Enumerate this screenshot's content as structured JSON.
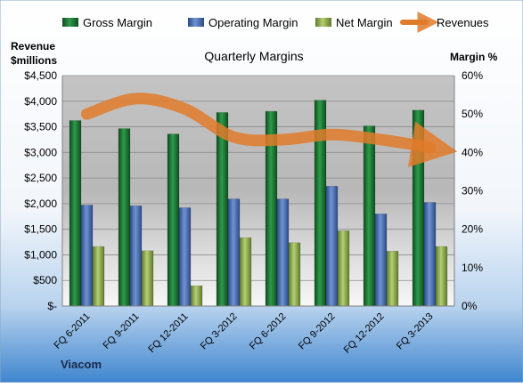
{
  "chart_data": {
    "type": "bar",
    "title": "Quarterly Margins",
    "categories": [
      "FQ 6-2011",
      "FQ 9-2011",
      "FQ 12-2011",
      "FQ 3-2012",
      "FQ 6-2012",
      "FQ 9-2012",
      "FQ 12-2012",
      "FQ 3-2013"
    ],
    "series": [
      {
        "name": "Gross Margin",
        "axis": "right",
        "color": "#1f7a36",
        "values": [
          48.3,
          46.2,
          44.8,
          50.4,
          50.7,
          53.6,
          46.9,
          51.0
        ]
      },
      {
        "name": "Operating Margin",
        "axis": "right",
        "color": "#4a6fb5",
        "values": [
          26.3,
          26.1,
          25.6,
          27.9,
          27.9,
          31.2,
          24.0,
          27.0
        ]
      },
      {
        "name": "Net Margin",
        "axis": "right",
        "color": "#9bbb59",
        "values": [
          15.5,
          14.4,
          5.3,
          17.8,
          16.5,
          19.6,
          14.3,
          15.5
        ]
      },
      {
        "name": "Revenues",
        "axis": "left",
        "type": "line",
        "color": "#e07b2a",
        "values": [
          3750,
          4050,
          3850,
          3300,
          3250,
          3350,
          3250,
          3100
        ]
      }
    ],
    "y_left": {
      "label_line1": "Revenue",
      "label_line2": "$millions",
      "ylim": [
        0,
        4500
      ],
      "ticks": [
        "$-",
        "$500",
        "$1,000",
        "$1,500",
        "$2,000",
        "$2,500",
        "$3,000",
        "$3,500",
        "$4,000",
        "$4,500"
      ]
    },
    "y_right": {
      "label": "Margin %",
      "ylim": [
        0,
        60
      ],
      "ticks": [
        "0%",
        "10%",
        "20%",
        "30%",
        "40%",
        "50%",
        "60%"
      ]
    },
    "legend_position": "top",
    "grid": true,
    "source_label": "Viacom"
  }
}
